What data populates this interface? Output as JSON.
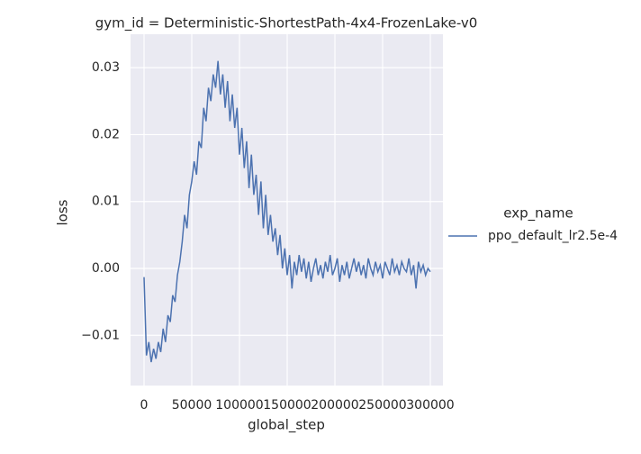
{
  "chart_data": {
    "type": "line",
    "title": "gym_id = Deterministic-ShortestPath-4x4-FrozenLake-v0",
    "x_label": "global_step",
    "y_label": "loss",
    "legend_title": "exp_name",
    "legend_position": "right",
    "grid": true,
    "x": [
      0,
      2500,
      5000,
      7500,
      10000,
      12500,
      15000,
      17500,
      20000,
      22500,
      25000,
      27500,
      30000,
      32500,
      35000,
      37500,
      40000,
      42500,
      45000,
      47500,
      50000,
      52500,
      55000,
      57500,
      60000,
      62500,
      65000,
      67500,
      70000,
      72500,
      75000,
      77500,
      80000,
      82500,
      85000,
      87500,
      90000,
      92500,
      95000,
      97500,
      100000,
      102500,
      105000,
      107500,
      110000,
      112500,
      115000,
      117500,
      120000,
      122500,
      125000,
      127500,
      130000,
      132500,
      135000,
      137500,
      140000,
      142500,
      145000,
      147500,
      150000,
      152500,
      155000,
      157500,
      160000,
      162500,
      165000,
      167500,
      170000,
      172500,
      175000,
      177500,
      180000,
      182500,
      185000,
      187500,
      190000,
      192500,
      195000,
      197500,
      200000,
      202500,
      205000,
      207500,
      210000,
      212500,
      215000,
      217500,
      220000,
      222500,
      225000,
      227500,
      230000,
      232500,
      235000,
      237500,
      240000,
      242500,
      245000,
      247500,
      250000,
      252500,
      255000,
      257500,
      260000,
      262500,
      265000,
      267500,
      270000,
      272500,
      275000,
      277500,
      280000,
      282500,
      285000,
      287500,
      290000,
      292500,
      295000,
      297500,
      300000
    ],
    "series": [
      {
        "name": "ppo_default_lr2.5e-4",
        "color": "#4c72b0",
        "values": [
          -0.0013,
          -0.013,
          -0.011,
          -0.014,
          -0.012,
          -0.0135,
          -0.011,
          -0.0125,
          -0.009,
          -0.011,
          -0.007,
          -0.008,
          -0.004,
          -0.005,
          -0.001,
          0.001,
          0.004,
          0.008,
          0.006,
          0.011,
          0.013,
          0.016,
          0.014,
          0.019,
          0.018,
          0.024,
          0.022,
          0.027,
          0.025,
          0.029,
          0.027,
          0.031,
          0.026,
          0.029,
          0.024,
          0.028,
          0.022,
          0.026,
          0.021,
          0.024,
          0.017,
          0.021,
          0.015,
          0.019,
          0.012,
          0.017,
          0.011,
          0.014,
          0.008,
          0.013,
          0.006,
          0.011,
          0.005,
          0.008,
          0.004,
          0.006,
          0.002,
          0.005,
          0.0,
          0.003,
          -0.001,
          0.002,
          -0.003,
          0.001,
          -0.001,
          0.002,
          -0.0005,
          0.0015,
          -0.0015,
          0.001,
          -0.002,
          0.0,
          0.0015,
          -0.001,
          0.0005,
          -0.0015,
          0.001,
          -0.0005,
          0.002,
          -0.001,
          0.0,
          0.0015,
          -0.002,
          0.0005,
          -0.001,
          0.001,
          -0.0015,
          0.0,
          0.0015,
          -0.0005,
          0.001,
          -0.001,
          0.0005,
          -0.0015,
          0.0015,
          0.0,
          -0.001,
          0.001,
          -0.0005,
          0.0005,
          -0.0015,
          0.001,
          0.0,
          -0.001,
          0.0015,
          -0.0005,
          0.0005,
          -0.001,
          0.001,
          0.0,
          -0.0005,
          0.0015,
          -0.001,
          0.0005,
          -0.003,
          0.001,
          -0.0005,
          0.0005,
          -0.001,
          0.0,
          -0.0005
        ]
      }
    ],
    "xlim": [
      -14150,
      313200
    ],
    "ylim": [
      -0.0175,
      0.035
    ],
    "xticks": [
      0,
      50000,
      100000,
      150000,
      200000,
      250000,
      300000
    ],
    "yticks": [
      {
        "value": -0.01,
        "label": "−0.01"
      },
      {
        "value": 0,
        "label": "0.00"
      },
      0.01,
      0.02,
      0.03
    ]
  }
}
